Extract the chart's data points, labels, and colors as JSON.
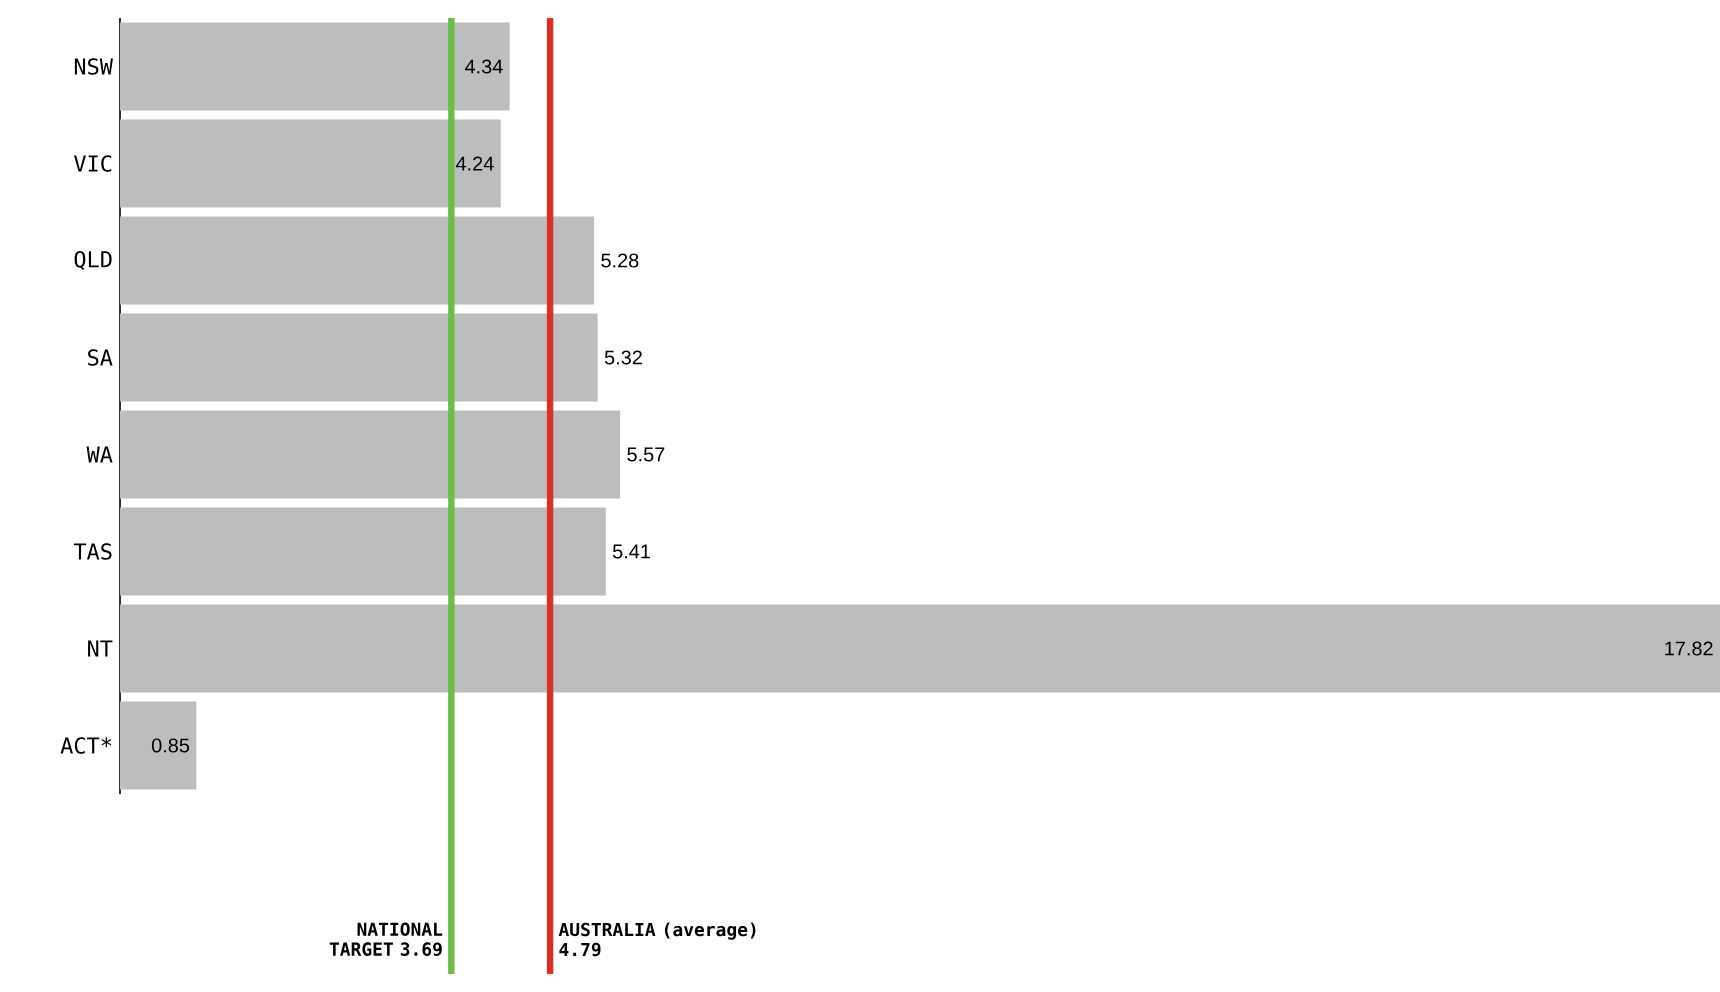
{
  "chart_data": {
    "type": "bar",
    "orientation": "horizontal",
    "categories": [
      "NSW",
      "VIC",
      "QLD",
      "SA",
      "WA",
      "TAS",
      "NT",
      "ACT*"
    ],
    "values": [
      4.34,
      4.24,
      5.28,
      5.32,
      5.57,
      5.41,
      17.82,
      0.85
    ],
    "color": "#bdbdbd",
    "data_labels": true,
    "ref_lines": [
      {
        "axis": "x",
        "value": 3.69,
        "label": "NATIONAL TARGET 3.69",
        "color": "#6cbd45"
      },
      {
        "axis": "x",
        "value": 4.79,
        "label": "AUSTRALIA (average) 4.79",
        "color": "#d7312c"
      }
    ]
  }
}
